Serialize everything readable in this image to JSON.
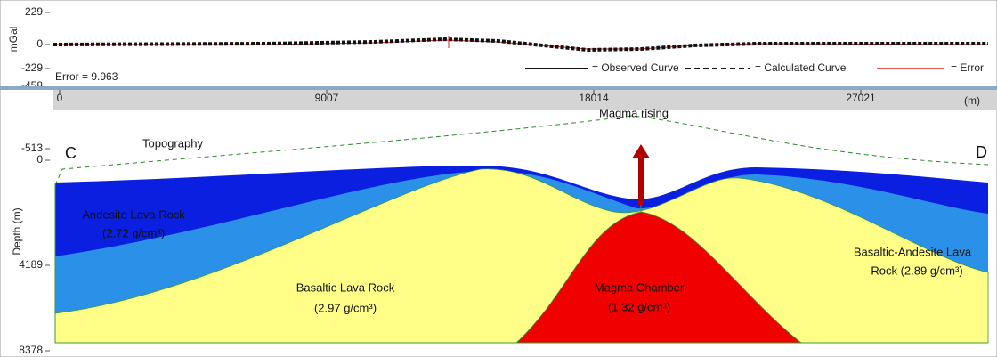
{
  "gravity_panel": {
    "y_label": "mGal",
    "yticks": [
      229,
      0,
      -229,
      -458
    ],
    "error": "Error = 9.963",
    "legend": [
      "= Observed Curve",
      "= Calculated Curve",
      "= Error"
    ]
  },
  "section": {
    "x_ticks": [
      0,
      9007,
      18014,
      27021
    ],
    "x_unit": "(m)",
    "y_label": "Depth (m)",
    "yticks": [
      -513,
      0,
      4189,
      8378
    ],
    "labels": {
      "start": "C",
      "end": "D",
      "topography": "Topography",
      "magma_rising": "Magma rising",
      "andesite": [
        "Andesite Lava Rock",
        "(2.72 g/cm³)"
      ],
      "basaltic": [
        "Basaltic Lava Rock",
        "(2.97 g/cm³)"
      ],
      "magma_chamber": [
        "Magma Chamber",
        "(1.32 g/cm³)"
      ],
      "basaltic_andesite": [
        "Basaltic-Andesite Lava",
        "Rock (2.89 g/cm³)"
      ]
    }
  }
}
